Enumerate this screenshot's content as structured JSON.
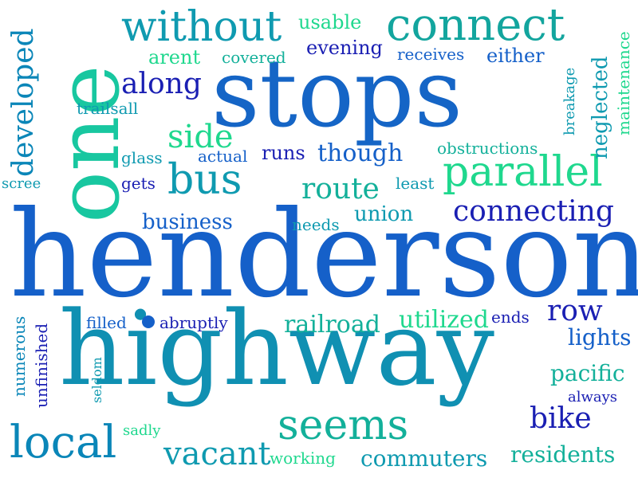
{
  "words": {
    "henderson": "henderson",
    "highway": "highway",
    "stops": "stops",
    "one": "one",
    "connect": "connect",
    "without": "without",
    "parallel": "parallel",
    "bus": "bus",
    "local": "local",
    "seems": "seems",
    "connecting": "connecting",
    "side": "side",
    "along": "along",
    "route": "route",
    "developed": "developed",
    "though": "though",
    "railroad": "railroad",
    "utilized": "utilized",
    "row": "row",
    "vacant": "vacant",
    "commuters": "commuters",
    "residents": "residents",
    "bike": "bike",
    "pacific": "pacific",
    "lights": "lights",
    "business": "business",
    "union": "union",
    "runs": "runs",
    "usable": "usable",
    "evening": "evening",
    "arent": "arent",
    "covered": "covered",
    "receives": "receives",
    "either": "either",
    "neglected": "neglected",
    "maintenance": "maintenance",
    "breakage": "breakage",
    "trailsall": "trailsall",
    "obstructions": "obstructions",
    "actual": "actual",
    "glass": "glass",
    "gets": "gets",
    "scree": "scree",
    "least": "least",
    "needs": "needs",
    "filled": "filled",
    "abruptly": "abruptly",
    "ends": "ends",
    "numerous": "numerous",
    "unfinished": "unfinished",
    "seldom": "seldom",
    "sadly": "sadly",
    "working": "working",
    "always": "always"
  },
  "colors": {
    "blue_dark": "#1a1fb3",
    "blue": "#1560c9",
    "teal": "#0f9ab0",
    "teal_green": "#13b09a",
    "green": "#1fd88e",
    "cyan": "#0a86b8"
  }
}
